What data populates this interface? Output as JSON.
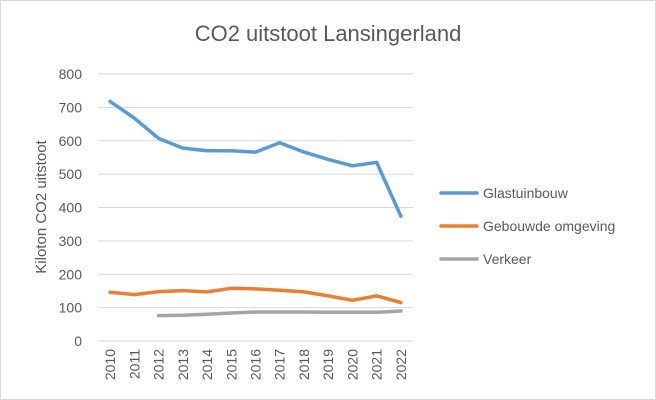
{
  "chart_data": {
    "type": "line",
    "title": "CO2 uitstoot Lansingerland",
    "xlabel": "",
    "ylabel": "Kiloton CO2 uitstoot",
    "ylim": [
      0,
      800
    ],
    "yticks": [
      0,
      100,
      200,
      300,
      400,
      500,
      600,
      700,
      800
    ],
    "x": [
      "2010",
      "2011",
      "2012",
      "2013",
      "2014",
      "2015",
      "2016",
      "2017",
      "2018",
      "2019",
      "2020",
      "2021",
      "2022"
    ],
    "grid": true,
    "legend_position": "right",
    "series": [
      {
        "name": "Glastuinbouw",
        "color": "#5b9bd5",
        "values": [
          718,
          668,
          607,
          578,
          570,
          570,
          566,
          594,
          566,
          544,
          525,
          535,
          374
        ]
      },
      {
        "name": "Gebouwde omgeving",
        "color": "#ed7d31",
        "values": [
          146,
          139,
          148,
          151,
          147,
          158,
          156,
          152,
          147,
          135,
          122,
          135,
          115
        ]
      },
      {
        "name": "Verkeer",
        "color": "#a5a5a5",
        "values": [
          null,
          null,
          76,
          77,
          80,
          84,
          87,
          87,
          87,
          86,
          86,
          86,
          90
        ]
      }
    ]
  }
}
